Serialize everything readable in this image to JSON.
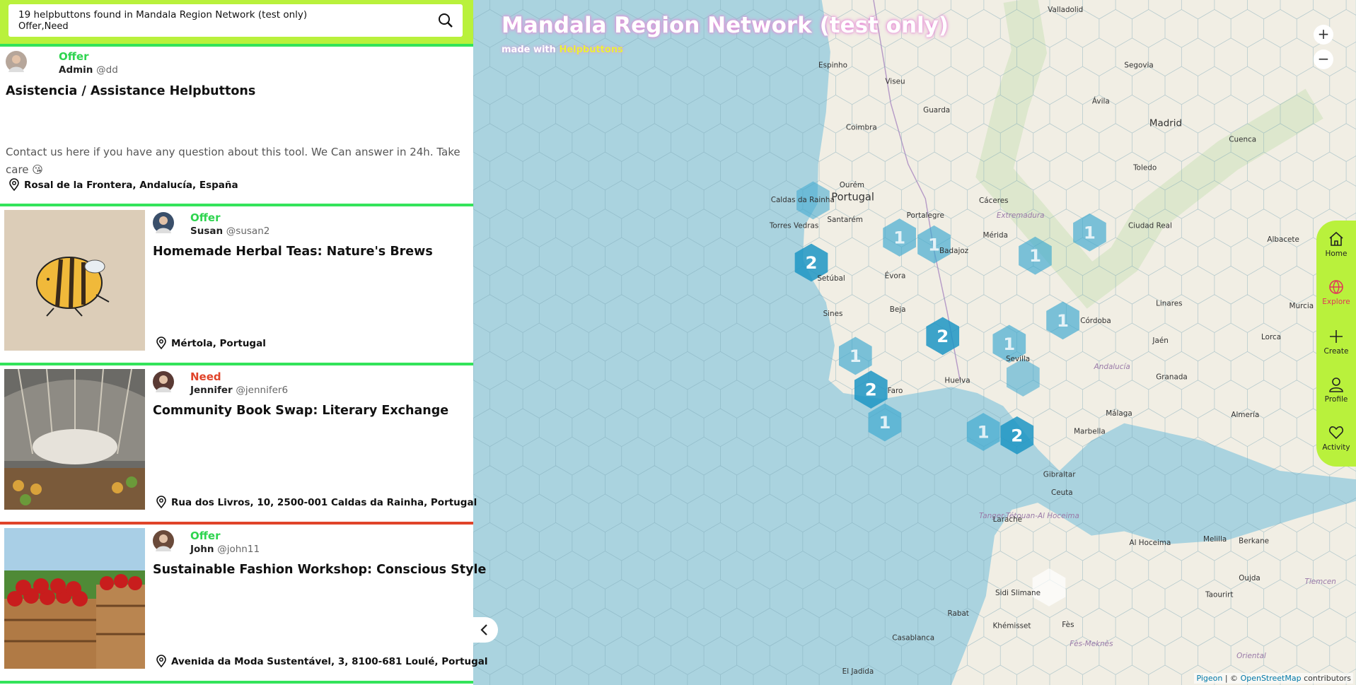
{
  "header": {
    "results": "19 helpbuttons found in Mandala Region Network (test only)",
    "filters": "Offer,Need"
  },
  "posts": [
    {
      "type": "Offer",
      "author": "Admin",
      "handle": "@dd",
      "title": "Asistencia / Assistance Helpbuttons",
      "description": "Contact us here if you have any question about this tool. We Can answer in 24h. Take care 😘",
      "location": "Rosal de la Frontera, Andalucía, España"
    },
    {
      "type": "Offer",
      "author": "Susan",
      "handle": "@susan2",
      "title": "Homemade Herbal Teas: Nature's Brews",
      "location": "Mértola, Portugal"
    },
    {
      "type": "Need",
      "author": "Jennifer",
      "handle": "@jennifer6",
      "title": "Community Book Swap: Literary Exchange",
      "location": "Rua dos Livros, 10, 2500-001 Caldas da Rainha, Portugal"
    },
    {
      "type": "Offer",
      "author": "John",
      "handle": "@john11",
      "title": "Sustainable Fashion Workshop: Conscious Style",
      "location": "Avenida da Moda Sustentável, 3, 8100-681 Loulé, Portugal"
    }
  ],
  "map": {
    "title": "Mandala Region Network (test only)",
    "made_with": "made with",
    "brand": "Helpbuttons",
    "clusters": [
      2,
      1,
      1,
      1,
      1,
      1,
      2,
      1,
      1,
      2,
      1,
      1,
      2
    ],
    "places": [
      "Valladolid",
      "Segovia",
      "Ávila",
      "Madrid",
      "Toledo",
      "Cuenca",
      "Espinho",
      "Viseu",
      "Coimbra",
      "Guarda",
      "Ourém",
      "Portugal",
      "Caldas da Rainha",
      "Torres Vedras",
      "Santarém",
      "Portalegre",
      "Setúbal",
      "Évora",
      "Badajoz",
      "Mérida",
      "Cáceres",
      "Extremadura",
      "Beja",
      "Sines",
      "Huelva",
      "Sevilla",
      "Córdoba",
      "Jaén",
      "Granada",
      "Málaga",
      "Almería",
      "Andalucía",
      "Linares",
      "Ciudad Real",
      "Albacete",
      "Lorca",
      "Murcia",
      "Marbella",
      "Gibraltar",
      "Ceuta",
      "Faro",
      "Tanger-Tétouan-Al Hoceima",
      "Larache",
      "Al Hoceima",
      "Melilla",
      "Berkane",
      "Oujda",
      "Taourirt",
      "Rabat",
      "Casablanca",
      "Fès",
      "Fès-Meknès",
      "Khémisset",
      "Sidi Slimane",
      "El Jadida",
      "Oriental",
      "Tlemcen"
    ],
    "attribution": {
      "source": "Pigeon",
      "sep": "| ©",
      "osm": "OpenStreetMap",
      "end": "contributors"
    }
  },
  "nav": [
    "Home",
    "Explore",
    "Create",
    "Profile",
    "Activity"
  ]
}
